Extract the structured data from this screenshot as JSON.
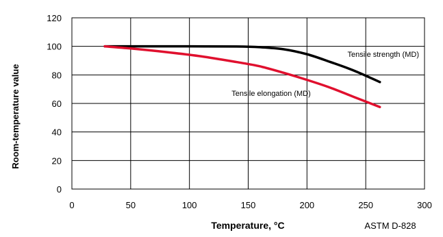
{
  "chart_data": {
    "type": "line",
    "title": "",
    "xlabel": "Temperature, °C",
    "ylabel": "Room-temperature value",
    "xlim": [
      0,
      300
    ],
    "ylim": [
      0,
      120
    ],
    "x_ticks": [
      0,
      50,
      100,
      150,
      200,
      250,
      300
    ],
    "y_ticks": [
      0,
      20,
      40,
      60,
      80,
      100,
      120
    ],
    "grid": true,
    "legend": "none",
    "note": "ASTM D-828",
    "series": [
      {
        "name": "Tensile strength (MD)",
        "color": "#000000",
        "x": [
          28,
          60,
          100,
          140,
          160,
          180,
          200,
          220,
          240,
          262
        ],
        "y": [
          100,
          100,
          100,
          99.9,
          99.4,
          98,
          94.5,
          89,
          83,
          75
        ]
      },
      {
        "name": "Tensile elongation (MD)",
        "color": "#e0102e",
        "x": [
          28,
          50,
          80,
          110,
          140,
          160,
          180,
          200,
          220,
          240,
          262
        ],
        "y": [
          100,
          98.5,
          96,
          93,
          89,
          86,
          81.5,
          76.5,
          71,
          64.5,
          57.5
        ]
      }
    ]
  }
}
